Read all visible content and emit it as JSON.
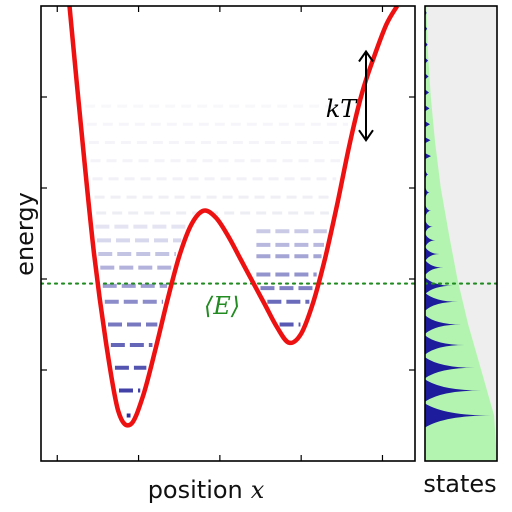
{
  "chart_data": [
    {
      "type": "line",
      "panel": "main",
      "xlabel": "position",
      "xlabel_var": "x",
      "ylabel": "energy",
      "xlim": [
        -2.2,
        2.4
      ],
      "ylim": [
        0,
        10
      ],
      "series": [
        {
          "color": "#ee1111",
          "x": [
            -1.85,
            -1.7,
            -1.55,
            -1.4,
            -1.25,
            -1.1,
            -0.95,
            -0.8,
            -0.65,
            -0.5,
            -0.35,
            -0.2,
            -0.05,
            0.1,
            0.25,
            0.4,
            0.55,
            0.7,
            0.85,
            1.0,
            1.15,
            1.3,
            1.45,
            1.6,
            1.75,
            1.9,
            2.05,
            2.18
          ],
          "y": [
            10.0,
            7.2,
            4.6,
            2.6,
            1.1,
            0.8,
            1.4,
            2.4,
            3.5,
            4.5,
            5.2,
            5.5,
            5.35,
            4.95,
            4.45,
            3.95,
            3.45,
            2.95,
            2.6,
            2.8,
            3.5,
            4.5,
            5.7,
            7.0,
            8.1,
            8.9,
            9.6,
            10.0
          ]
        }
      ],
      "levels_left": [
        1.0,
        1.55,
        2.05,
        2.55,
        3.0,
        3.5,
        3.85,
        4.25,
        4.55,
        4.85,
        5.15
      ],
      "levels_right": [
        3.0,
        3.5,
        3.8,
        4.1,
        4.5,
        4.75,
        5.05
      ],
      "mean_energy": 3.9,
      "mean_label": "⟨E⟩",
      "kT_label": "kT",
      "kT_range": [
        7.05,
        9.0
      ],
      "grid": false
    },
    {
      "type": "area",
      "panel": "side",
      "xlabel": "states",
      "ylim": [
        0,
        10
      ],
      "peaks": [
        {
          "energy": 1.0,
          "height": 1.0
        },
        {
          "energy": 1.55,
          "height": 0.85
        },
        {
          "energy": 2.05,
          "height": 0.75
        },
        {
          "energy": 2.55,
          "height": 0.6
        },
        {
          "energy": 3.0,
          "height": 0.55
        },
        {
          "energy": 3.5,
          "height": 0.5
        },
        {
          "energy": 3.85,
          "height": 0.42
        },
        {
          "energy": 4.25,
          "height": 0.28
        },
        {
          "energy": 4.55,
          "height": 0.22
        },
        {
          "energy": 4.85,
          "height": 0.16
        },
        {
          "energy": 5.15,
          "height": 0.12
        },
        {
          "energy": 5.5,
          "height": 0.09
        },
        {
          "energy": 5.9,
          "height": 0.07
        },
        {
          "energy": 6.3,
          "height": 0.05
        }
      ],
      "envelope": {
        "energy": [
          0.0,
          1.0,
          2.0,
          3.0,
          4.0,
          5.0,
          6.0,
          7.0,
          8.0,
          9.0,
          10.0
        ],
        "value": [
          1.0,
          0.96,
          0.78,
          0.6,
          0.45,
          0.33,
          0.22,
          0.14,
          0.08,
          0.04,
          0.02
        ]
      },
      "fill_colors": {
        "density": "#b3f5b0",
        "background": "#eeeeee",
        "peaks": "#1c1c9c"
      }
    }
  ],
  "colors": {
    "curve": "#ee1111",
    "mean_line": "#228b22",
    "levels": "#22229a"
  }
}
